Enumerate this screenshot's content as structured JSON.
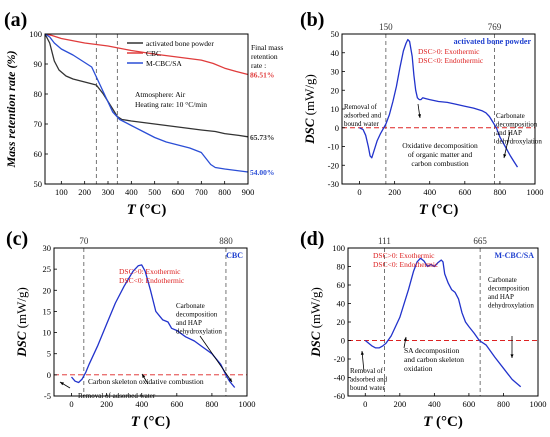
{
  "figure": {
    "panels": [
      "(a)",
      "(b)",
      "(c)",
      "(d)"
    ]
  },
  "chart_data": [
    {
      "id": "a",
      "type": "line",
      "panel_label": "(a)",
      "xlabel_italic": "T",
      "xlabel_unit": "(°C)",
      "ylabel": "Mass retention rate (%)",
      "xlim": [
        30,
        900
      ],
      "ylim": [
        50,
        100
      ],
      "xticks": [
        100,
        200,
        300,
        400,
        500,
        600,
        700,
        800,
        900
      ],
      "yticks": [
        50,
        60,
        70,
        80,
        90,
        100
      ],
      "vlines": [
        250,
        340
      ],
      "annotations": {
        "atmosphere": "Atmosphere: Air",
        "heating": "Heating rate: 10 °C/min",
        "final_title": [
          "Final mass",
          "retention",
          "rate :"
        ]
      },
      "series": [
        {
          "name": "activated bone powder",
          "color": "#333333",
          "final_label": "65.73%",
          "x": [
            30,
            50,
            70,
            90,
            120,
            150,
            200,
            250,
            280,
            320,
            340,
            360,
            400,
            500,
            600,
            700,
            760,
            800,
            860,
            900
          ],
          "y": [
            100,
            97,
            91,
            88,
            86,
            85,
            84,
            83,
            80,
            75,
            72.5,
            71.5,
            71,
            70,
            69,
            68,
            67.5,
            66.8,
            66.2,
            65.73
          ]
        },
        {
          "name": "CBC",
          "color": "#e03c3c",
          "final_label": "86.51%",
          "x": [
            30,
            60,
            100,
            200,
            300,
            400,
            500,
            600,
            700,
            750,
            800,
            850,
            900
          ],
          "y": [
            100,
            99.5,
            98.5,
            97,
            96,
            94.5,
            93.3,
            92.3,
            91.3,
            90.2,
            88.6,
            87.5,
            86.51
          ]
        },
        {
          "name": "M-CBC/SA",
          "color": "#2b4ed6",
          "final_label": "54.00%",
          "x": [
            30,
            50,
            70,
            100,
            150,
            200,
            230,
            260,
            290,
            320,
            350,
            400,
            450,
            500,
            550,
            600,
            650,
            700,
            720,
            740,
            760,
            800,
            850,
            900
          ],
          "y": [
            100,
            99,
            97,
            95,
            93,
            90.5,
            89,
            84,
            79,
            74,
            71.5,
            69.5,
            67.5,
            65.5,
            64,
            63,
            62,
            60.5,
            58.5,
            56.5,
            55.5,
            55,
            54.5,
            54.0
          ]
        }
      ]
    },
    {
      "id": "b",
      "type": "line",
      "panel_label": "(b)",
      "xlabel_italic": "T",
      "xlabel_unit": "(°C)",
      "ylabel_italic": "DSC",
      "ylabel_unit": "(mW/g)",
      "xlim": [
        -100,
        1000
      ],
      "ylim": [
        -30,
        50
      ],
      "xticks": [
        0,
        200,
        400,
        600,
        800,
        1000
      ],
      "yticks": [
        -30,
        -20,
        -10,
        0,
        10,
        20,
        30,
        40,
        50
      ],
      "vlines": [
        {
          "x": 150,
          "label": "150"
        },
        {
          "x": 769,
          "label": "769"
        }
      ],
      "title": "activated bone powder",
      "legend": [
        "DSC>0: Exothermic",
        "DSC<0: Endothermic"
      ],
      "annotations": {
        "left": [
          "Removal of",
          "adsorbed and",
          "bound water"
        ],
        "middle": [
          "Oxidative decomposition",
          "of organic matter and",
          "carbon combustion"
        ],
        "right": [
          "Carbonate",
          "decomposition",
          "and HAP",
          "dehydroxylation"
        ]
      },
      "series": [
        {
          "name": "",
          "color": "#2233cc",
          "x": [
            0,
            20,
            35,
            50,
            60,
            70,
            80,
            100,
            120,
            150,
            170,
            190,
            210,
            230,
            250,
            265,
            275,
            285,
            300,
            310,
            320,
            330,
            340,
            350,
            360,
            380,
            400,
            450,
            500,
            550,
            600,
            650,
            700,
            720,
            740,
            760,
            780,
            800,
            830,
            860,
            880,
            900
          ],
          "y": [
            0,
            -1,
            -4,
            -10,
            -15,
            -16,
            -13,
            -7,
            -3,
            2,
            7,
            14,
            22,
            32,
            41,
            45,
            47,
            46,
            38,
            28,
            20,
            16,
            15,
            15,
            16,
            15.5,
            15,
            14,
            13.5,
            12.5,
            11.5,
            10.5,
            9,
            8,
            6,
            3,
            0,
            -5,
            -10,
            -15,
            -18,
            -21
          ]
        }
      ]
    },
    {
      "id": "c",
      "type": "line",
      "panel_label": "(c)",
      "xlabel_italic": "T",
      "xlabel_unit": "(°C)",
      "ylabel_italic": "DSC",
      "ylabel_unit": "(mW/g)",
      "xlim": [
        -100,
        1000
      ],
      "ylim": [
        -5,
        30
      ],
      "xticks": [
        0,
        200,
        400,
        600,
        800,
        1000
      ],
      "yticks": [
        -5,
        0,
        5,
        10,
        15,
        20,
        25,
        30
      ],
      "vlines": [
        {
          "x": 70,
          "label": "70"
        },
        {
          "x": 880,
          "label": "880"
        }
      ],
      "title": "CBC",
      "legend": [
        "DSC>0: Exothermic",
        "DSC<0: Endothermic"
      ],
      "annotations": {
        "left": [
          "Removal of adsorbed water"
        ],
        "middle": [
          "Carbon skeleton oxidative combustion"
        ],
        "right": [
          "Carbonate",
          "decomposition",
          "and HAP",
          "dehydroxylation"
        ]
      },
      "series": [
        {
          "name": "",
          "color": "#2233cc",
          "x": [
            0,
            20,
            40,
            60,
            80,
            100,
            150,
            200,
            250,
            300,
            350,
            380,
            400,
            420,
            450,
            480,
            500,
            520,
            550,
            570,
            600,
            650,
            700,
            750,
            800,
            850,
            880,
            900,
            930
          ],
          "y": [
            -0.5,
            -1.5,
            -1.8,
            -1,
            0.5,
            2.5,
            7,
            12,
            17,
            21,
            24.5,
            25.8,
            26,
            24.5,
            20,
            15,
            14,
            13,
            12.5,
            11,
            10.5,
            9,
            8,
            6.5,
            5,
            2.5,
            0,
            -1.5,
            -3
          ]
        }
      ]
    },
    {
      "id": "d",
      "type": "line",
      "panel_label": "(d)",
      "xlabel_italic": "T",
      "xlabel_unit": "(°C)",
      "ylabel_italic": "DSC",
      "ylabel_unit": "(mW/g)",
      "xlim": [
        -100,
        1000
      ],
      "ylim": [
        -60,
        100
      ],
      "xticks": [
        0,
        200,
        400,
        600,
        800,
        1000
      ],
      "yticks": [
        -60,
        -40,
        -20,
        0,
        20,
        40,
        60,
        80,
        100
      ],
      "vlines": [
        {
          "x": 111,
          "label": "111"
        },
        {
          "x": 665,
          "label": "665"
        }
      ],
      "title": "M-CBC/SA",
      "legend": [
        "DSC>0: Exothermic",
        "DSC<0: Endothermic"
      ],
      "annotations": {
        "left": [
          "Removal of",
          "adsorbed and",
          "bound water"
        ],
        "middle": [
          "SA decomposition",
          "and carbon skeleton",
          "oxidation"
        ],
        "right": [
          "Carbonate",
          "decomposition",
          "and HAP",
          "dehydroxylation"
        ]
      },
      "series": [
        {
          "name": "",
          "color": "#2233cc",
          "x": [
            0,
            20,
            40,
            60,
            80,
            100,
            120,
            150,
            200,
            250,
            280,
            300,
            320,
            340,
            360,
            380,
            400,
            420,
            440,
            450,
            460,
            480,
            500,
            520,
            540,
            560,
            580,
            600,
            630,
            660,
            700,
            750,
            800,
            850,
            900
          ],
          "y": [
            0,
            -3,
            -6,
            -8,
            -8,
            -6,
            -3,
            5,
            25,
            55,
            75,
            85,
            89,
            86,
            80,
            82,
            80,
            84,
            87,
            85,
            72,
            62,
            55,
            52,
            45,
            30,
            20,
            15,
            8,
            0,
            -5,
            -18,
            -30,
            -42,
            -50
          ]
        }
      ]
    }
  ]
}
